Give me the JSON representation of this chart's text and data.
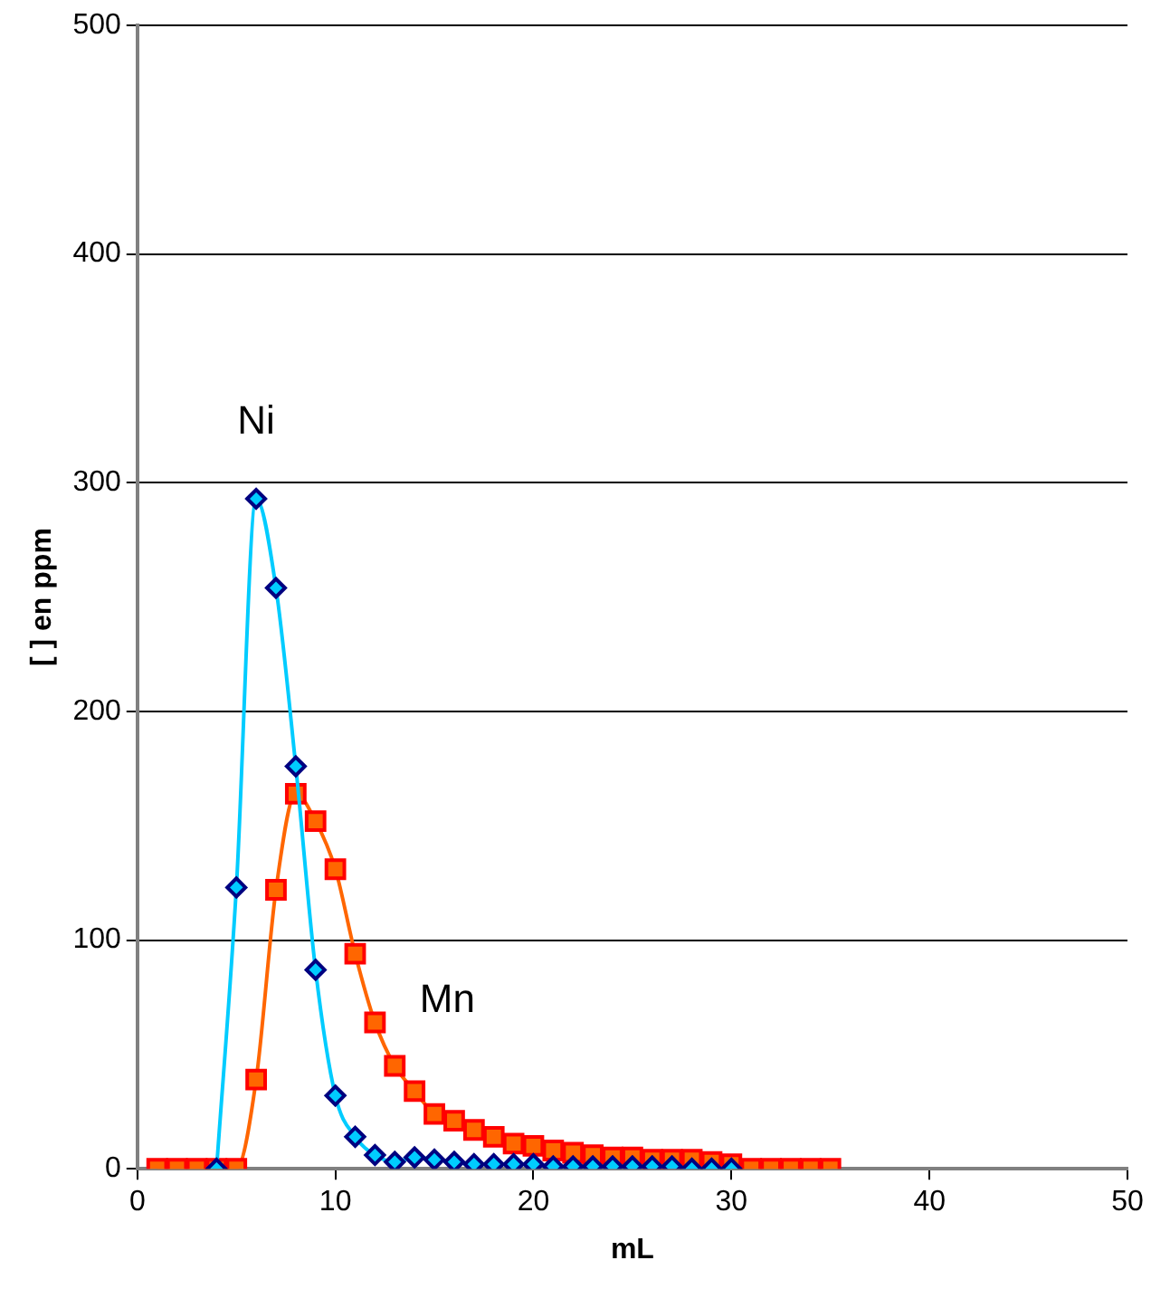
{
  "chart_data": {
    "type": "line",
    "xlabel": "mL",
    "ylabel": "[ ] en ppm",
    "xlim": [
      0,
      50
    ],
    "xticks": [
      0,
      10,
      20,
      30,
      40,
      50
    ],
    "ylim": [
      0,
      500
    ],
    "yticks": [
      0,
      100,
      200,
      300,
      400,
      500
    ],
    "grid": "y",
    "legend": false,
    "series": [
      {
        "name": "Ni",
        "color": "#00ccff",
        "marker": "diamond",
        "x": [
          4,
          5,
          6,
          7,
          8,
          9,
          10,
          11,
          12,
          13,
          14,
          15,
          16,
          17,
          18,
          19,
          20,
          21,
          22,
          23,
          24,
          25,
          26,
          27,
          28,
          29,
          30
        ],
        "values": [
          0,
          123,
          293,
          254,
          176,
          87,
          32,
          14,
          6,
          3,
          5,
          4,
          3,
          2,
          2,
          2,
          2,
          1,
          1,
          1,
          1,
          1,
          1,
          1,
          0,
          0,
          0
        ]
      },
      {
        "name": "Mn",
        "color": "#ff6600",
        "marker": "square",
        "x": [
          1,
          2,
          3,
          4,
          5,
          6,
          7,
          8,
          9,
          10,
          11,
          12,
          13,
          14,
          15,
          16,
          17,
          18,
          19,
          20,
          21,
          22,
          23,
          24,
          25,
          26,
          27,
          28,
          29,
          30,
          31,
          32,
          33,
          34,
          35
        ],
        "values": [
          0,
          0,
          0,
          0,
          0,
          39,
          122,
          164,
          152,
          131,
          94,
          64,
          45,
          34,
          24,
          21,
          17,
          14,
          11,
          10,
          8,
          7,
          6,
          5,
          5,
          4,
          4,
          4,
          3,
          2,
          0,
          0,
          0,
          0,
          0
        ]
      }
    ]
  }
}
